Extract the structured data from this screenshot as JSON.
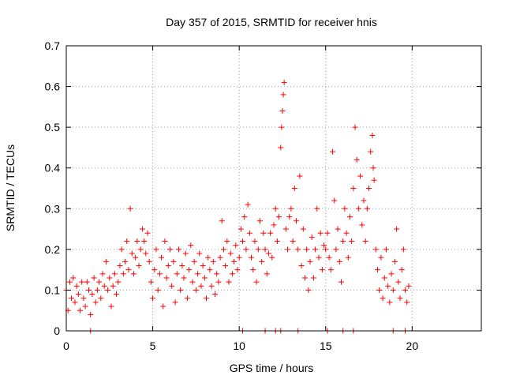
{
  "chart_data": {
    "type": "scatter",
    "title": "Day 357 of 2015, SRMTID for receiver hnis",
    "xlabel": "GPS time / hours",
    "ylabel": "SRMTID / TECUs",
    "xlim": [
      0,
      24
    ],
    "ylim": [
      0,
      0.7
    ],
    "xticks": [
      0,
      5,
      10,
      15,
      20
    ],
    "xtick_labels": [
      "0",
      "5",
      "10",
      "15",
      "20"
    ],
    "yticks": [
      0,
      0.1,
      0.2,
      0.3,
      0.4,
      0.5,
      0.6,
      0.7
    ],
    "ytick_labels": [
      "0",
      "0.1",
      "0.2",
      "0.3",
      "0.4",
      "0.5",
      "0.6",
      "0.7"
    ],
    "grid": true,
    "marker": "plus",
    "color": "#ff0000",
    "series": [
      {
        "name": "SRMTID",
        "points": [
          [
            0.0,
            0.1
          ],
          [
            0.1,
            0.05
          ],
          [
            0.2,
            0.12
          ],
          [
            0.3,
            0.08
          ],
          [
            0.4,
            0.13
          ],
          [
            0.5,
            0.07
          ],
          [
            0.6,
            0.11
          ],
          [
            0.7,
            0.09
          ],
          [
            0.8,
            0.05
          ],
          [
            0.9,
            0.12
          ],
          [
            1.0,
            0.08
          ],
          [
            1.1,
            0.06
          ],
          [
            1.2,
            0.12
          ],
          [
            1.3,
            0.1
          ],
          [
            1.4,
            0.04
          ],
          [
            1.5,
            0.09
          ],
          [
            1.6,
            0.13
          ],
          [
            1.7,
            0.07
          ],
          [
            1.8,
            0.1
          ],
          [
            1.9,
            0.12
          ],
          [
            2.0,
            0.08
          ],
          [
            2.1,
            0.14
          ],
          [
            2.2,
            0.11
          ],
          [
            2.3,
            0.17
          ],
          [
            2.4,
            0.1
          ],
          [
            2.5,
            0.13
          ],
          [
            2.6,
            0.06
          ],
          [
            2.7,
            0.11
          ],
          [
            2.8,
            0.14
          ],
          [
            2.9,
            0.09
          ],
          [
            3.0,
            0.12
          ],
          [
            3.1,
            0.16
          ],
          [
            3.2,
            0.2
          ],
          [
            3.3,
            0.14
          ],
          [
            3.4,
            0.17
          ],
          [
            3.5,
            0.22
          ],
          [
            3.6,
            0.15
          ],
          [
            3.7,
            0.3
          ],
          [
            3.8,
            0.19
          ],
          [
            3.9,
            0.14
          ],
          [
            4.0,
            0.18
          ],
          [
            4.1,
            0.22
          ],
          [
            4.2,
            0.16
          ],
          [
            4.3,
            0.2
          ],
          [
            4.4,
            0.25
          ],
          [
            4.5,
            0.22
          ],
          [
            4.6,
            0.19
          ],
          [
            4.7,
            0.24
          ],
          [
            4.8,
            0.17
          ],
          [
            4.9,
            0.12
          ],
          [
            5.0,
            0.08
          ],
          [
            5.1,
            0.15
          ],
          [
            5.2,
            0.2
          ],
          [
            5.3,
            0.1
          ],
          [
            5.4,
            0.14
          ],
          [
            5.5,
            0.18
          ],
          [
            5.6,
            0.06
          ],
          [
            5.7,
            0.22
          ],
          [
            5.8,
            0.13
          ],
          [
            5.9,
            0.16
          ],
          [
            6.0,
            0.2
          ],
          [
            6.1,
            0.11
          ],
          [
            6.2,
            0.17
          ],
          [
            6.3,
            0.07
          ],
          [
            6.4,
            0.14
          ],
          [
            6.5,
            0.2
          ],
          [
            6.6,
            0.1
          ],
          [
            6.7,
            0.16
          ],
          [
            6.8,
            0.13
          ],
          [
            6.9,
            0.19
          ],
          [
            7.0,
            0.08
          ],
          [
            7.1,
            0.15
          ],
          [
            7.2,
            0.21
          ],
          [
            7.3,
            0.12
          ],
          [
            7.4,
            0.17
          ],
          [
            7.5,
            0.1
          ],
          [
            7.6,
            0.14
          ],
          [
            7.7,
            0.19
          ],
          [
            7.8,
            0.11
          ],
          [
            7.9,
            0.16
          ],
          [
            8.0,
            0.13
          ],
          [
            8.1,
            0.08
          ],
          [
            8.2,
            0.18
          ],
          [
            8.3,
            0.15
          ],
          [
            8.4,
            0.11
          ],
          [
            8.5,
            0.17
          ],
          [
            8.6,
            0.09
          ],
          [
            8.7,
            0.14
          ],
          [
            8.8,
            0.12
          ],
          [
            8.9,
            0.18
          ],
          [
            9.0,
            0.27
          ],
          [
            9.1,
            0.2
          ],
          [
            9.2,
            0.16
          ],
          [
            9.3,
            0.22
          ],
          [
            9.4,
            0.12
          ],
          [
            9.5,
            0.19
          ],
          [
            9.6,
            0.14
          ],
          [
            9.7,
            0.17
          ],
          [
            9.8,
            0.21
          ],
          [
            9.9,
            0.15
          ],
          [
            10.0,
            0.18
          ],
          [
            10.1,
            0.25
          ],
          [
            10.2,
            0.22
          ],
          [
            10.3,
            0.28
          ],
          [
            10.4,
            0.2
          ],
          [
            10.5,
            0.31
          ],
          [
            10.6,
            0.24
          ],
          [
            10.7,
            0.18
          ],
          [
            10.8,
            0.15
          ],
          [
            10.9,
            0.22
          ],
          [
            11.0,
            0.12
          ],
          [
            11.1,
            0.2
          ],
          [
            11.2,
            0.27
          ],
          [
            11.3,
            0.17
          ],
          [
            11.4,
            0.24
          ],
          [
            11.5,
            0.2
          ],
          [
            11.6,
            0.14
          ],
          [
            11.7,
            0.19
          ],
          [
            11.8,
            0.24
          ],
          [
            11.9,
            0.18
          ],
          [
            12.0,
            0.26
          ],
          [
            12.1,
            0.3
          ],
          [
            12.2,
            0.22
          ],
          [
            12.3,
            0.28
          ],
          [
            12.4,
            0.45
          ],
          [
            12.45,
            0.5
          ],
          [
            12.5,
            0.54
          ],
          [
            12.55,
            0.58
          ],
          [
            12.6,
            0.61
          ],
          [
            12.7,
            0.25
          ],
          [
            12.8,
            0.2
          ],
          [
            12.9,
            0.28
          ],
          [
            13.0,
            0.3
          ],
          [
            13.1,
            0.22
          ],
          [
            13.2,
            0.35
          ],
          [
            13.3,
            0.27
          ],
          [
            13.4,
            0.2
          ],
          [
            13.5,
            0.38
          ],
          [
            13.6,
            0.16
          ],
          [
            13.7,
            0.25
          ],
          [
            13.8,
            0.13
          ],
          [
            13.9,
            0.2
          ],
          [
            14.0,
            0.1
          ],
          [
            14.1,
            0.17
          ],
          [
            14.2,
            0.23
          ],
          [
            14.3,
            0.13
          ],
          [
            14.4,
            0.2
          ],
          [
            14.5,
            0.3
          ],
          [
            14.6,
            0.18
          ],
          [
            14.7,
            0.24
          ],
          [
            14.8,
            0.15
          ],
          [
            14.9,
            0.21
          ],
          [
            15.0,
            0.2
          ],
          [
            15.1,
            0.24
          ],
          [
            15.2,
            0.18
          ],
          [
            15.3,
            0.15
          ],
          [
            15.4,
            0.44
          ],
          [
            15.5,
            0.32
          ],
          [
            15.6,
            0.2
          ],
          [
            15.7,
            0.25
          ],
          [
            15.8,
            0.17
          ],
          [
            15.9,
            0.12
          ],
          [
            16.0,
            0.22
          ],
          [
            16.1,
            0.3
          ],
          [
            16.2,
            0.24
          ],
          [
            16.3,
            0.18
          ],
          [
            16.4,
            0.28
          ],
          [
            16.5,
            0.22
          ],
          [
            16.6,
            0.35
          ],
          [
            16.7,
            0.5
          ],
          [
            16.8,
            0.42
          ],
          [
            16.9,
            0.3
          ],
          [
            17.0,
            0.38
          ],
          [
            17.1,
            0.26
          ],
          [
            17.2,
            0.32
          ],
          [
            17.3,
            0.22
          ],
          [
            17.4,
            0.3
          ],
          [
            17.5,
            0.35
          ],
          [
            17.6,
            0.44
          ],
          [
            17.7,
            0.48
          ],
          [
            17.75,
            0.4
          ],
          [
            17.8,
            0.37
          ],
          [
            17.9,
            0.2
          ],
          [
            18.0,
            0.15
          ],
          [
            18.1,
            0.1
          ],
          [
            18.2,
            0.18
          ],
          [
            18.3,
            0.08
          ],
          [
            18.4,
            0.13
          ],
          [
            18.5,
            0.2
          ],
          [
            18.6,
            0.11
          ],
          [
            18.7,
            0.07
          ],
          [
            18.8,
            0.14
          ],
          [
            18.9,
            0.1
          ],
          [
            19.0,
            0.17
          ],
          [
            19.1,
            0.25
          ],
          [
            19.2,
            0.12
          ],
          [
            19.3,
            0.08
          ],
          [
            19.4,
            0.15
          ],
          [
            19.5,
            0.2
          ],
          [
            19.6,
            0.1
          ],
          [
            19.7,
            0.07
          ],
          [
            19.8,
            0.11
          ],
          [
            1.4,
            0.0
          ],
          [
            10.2,
            0.0
          ],
          [
            11.5,
            0.0
          ],
          [
            12.1,
            0.0
          ],
          [
            12.4,
            0.0
          ],
          [
            13.4,
            0.0
          ],
          [
            15.1,
            0.0
          ],
          [
            16.0,
            0.0
          ],
          [
            16.6,
            0.0
          ],
          [
            18.9,
            0.0
          ],
          [
            19.6,
            0.0
          ]
        ]
      }
    ]
  }
}
